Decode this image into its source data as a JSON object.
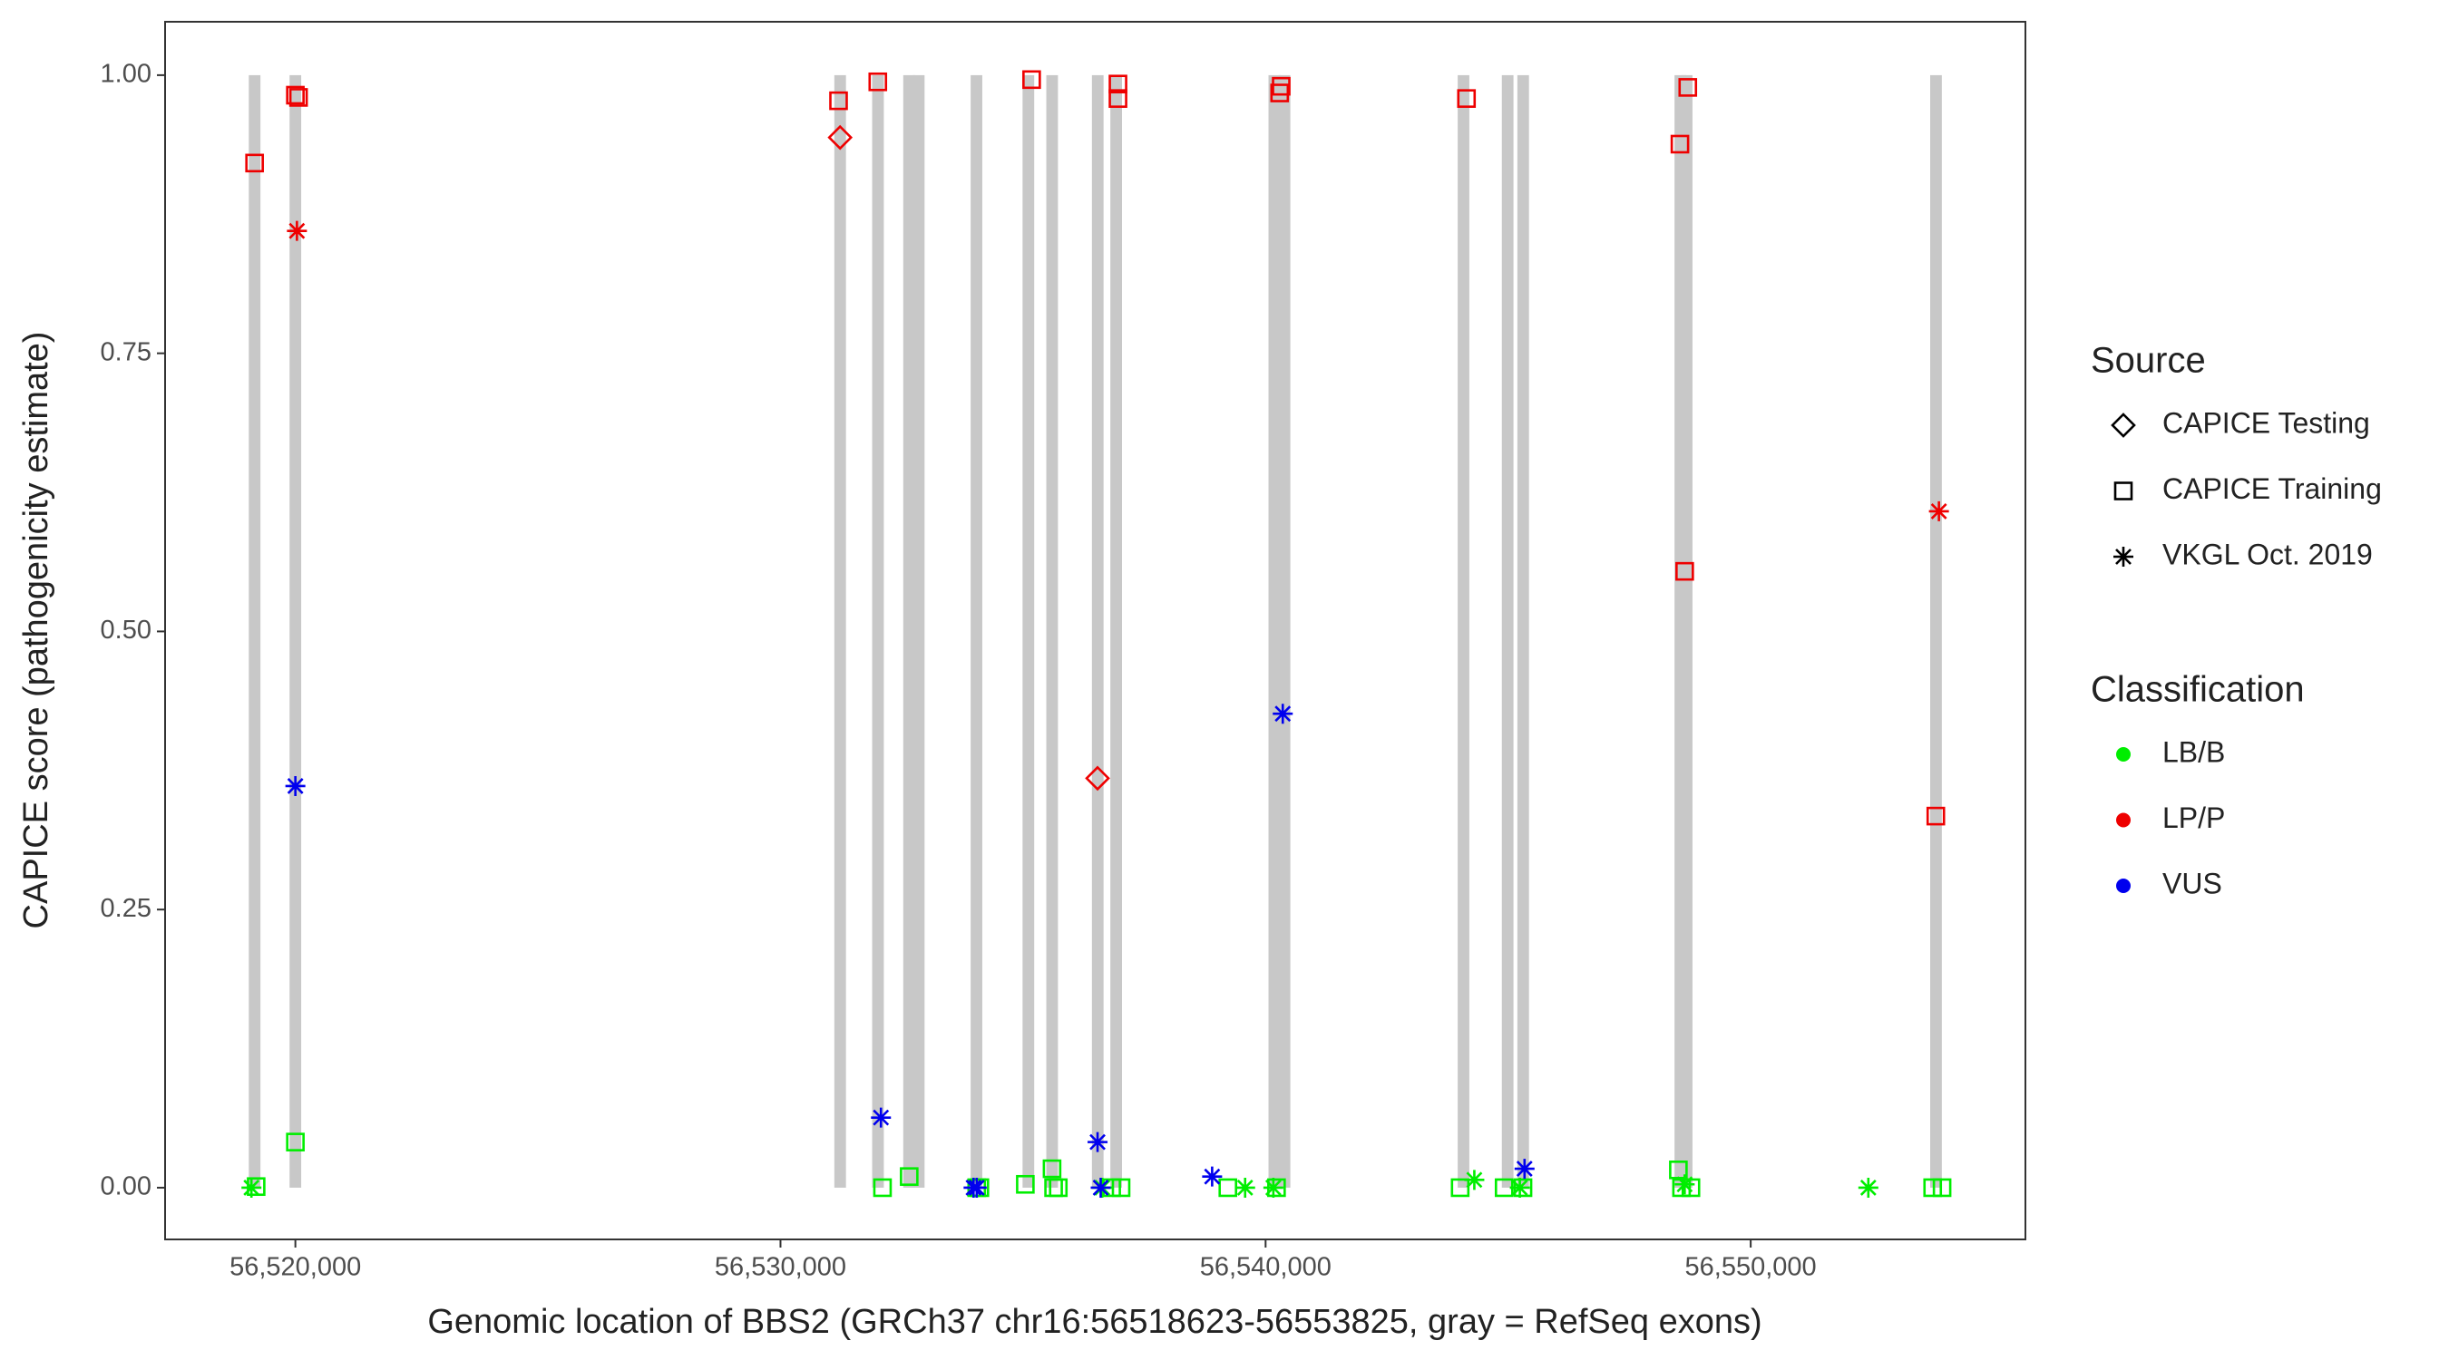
{
  "chart_data": {
    "type": "scatter",
    "xlabel": "Genomic location of BBS2 (GRCh37 chr16:56518623-56553825, gray = RefSeq exons)",
    "ylabel": "CAPICE score (pathogenicity estimate)",
    "xlim": [
      56517314,
      56555663
    ],
    "ylim": [
      -0.0465,
      1.048
    ],
    "xticks": [
      {
        "value": 56520000,
        "label": "56,520,000"
      },
      {
        "value": 56530000,
        "label": "56,530,000"
      },
      {
        "value": 56540000,
        "label": "56,540,000"
      },
      {
        "value": 56550000,
        "label": "56,550,000"
      }
    ],
    "yticks": [
      {
        "value": 0,
        "label": "0.00"
      },
      {
        "value": 0.25,
        "label": "0.25"
      },
      {
        "value": 0.5,
        "label": "0.50"
      },
      {
        "value": 0.75,
        "label": "0.75"
      },
      {
        "value": 1,
        "label": "1.00"
      }
    ],
    "grid": false,
    "exons": {
      "color": "#c8c8c8",
      "bottom": 0,
      "top": 1,
      "starts": [
        56519040,
        56519880,
        56531110,
        56531890,
        56532530,
        56532730,
        56533920,
        56534990,
        56535480,
        56536420,
        56536800,
        56540060,
        56540270,
        56543960,
        56544870,
        56545190,
        56548430,
        56548560,
        56553700
      ],
      "ends": [
        56519280,
        56520120,
        56531350,
        56532130,
        56532770,
        56532970,
        56534160,
        56535230,
        56535720,
        56536660,
        56537040,
        56540300,
        56540510,
        56544200,
        56545110,
        56545430,
        56548670,
        56548800,
        56553940
      ]
    },
    "shape_legend": {
      "title": "Source",
      "items": [
        {
          "name": "CAPICE Testing",
          "shape": "diamond"
        },
        {
          "name": "CAPICE Training",
          "shape": "square"
        },
        {
          "name": "VKGL Oct. 2019",
          "shape": "asterisk"
        }
      ]
    },
    "color_legend": {
      "title": "Classification"
    },
    "series": [
      {
        "name": "LB/B",
        "color": "#00ee00",
        "by_source": [
          {
            "x": [],
            "values": []
          },
          {
            "x": [
              56519191,
              56520000,
              56532103,
              56532653,
              56534045,
              56534110,
              56535047,
              56535598,
              56535630,
              56535727,
              56536827,
              56537021,
              56539222,
              56540225,
              56544011,
              56544917,
              56545306,
              56548509,
              56548574,
              56548768,
              56553751,
              56553945
            ],
            "values": [
              0.001,
              0.041,
              0,
              0.01,
              0,
              0,
              0.003,
              0.017,
              0,
              0,
              0,
              0,
              0,
              0,
              0,
              0,
              0,
              0.016,
              0,
              0,
              0,
              0
            ]
          },
          {
            "x": [
              56519094,
              56536633,
              56539578,
              56540160,
              56544303,
              56545241,
              56548639,
              56552425
            ],
            "values": [
              0,
              0,
              0,
              0,
              0.007,
              0,
              0.003,
              0
            ]
          }
        ]
      },
      {
        "name": "LP/P",
        "color": "#ee0000",
        "by_source": [
          {
            "x": [
              56531229,
              56536536
            ],
            "values": [
              0.944,
              0.368
            ]
          },
          {
            "x": [
              56519159,
              56520000,
              56520065,
              56531197,
              56532006,
              56535177,
              56536957,
              56536957,
              56540290,
              56540322,
              56544141,
              56548541,
              56548703,
              56548639,
              56553816
            ],
            "values": [
              0.921,
              0.982,
              0.98,
              0.977,
              0.994,
              0.996,
              0.992,
              0.979,
              0.984,
              0.99,
              0.979,
              0.938,
              0.989,
              0.554,
              0.334
            ]
          },
          {
            "x": [
              56520032,
              56553880
            ],
            "values": [
              0.86,
              0.608
            ]
          }
        ]
      },
      {
        "name": "VUS",
        "color": "#0000ee",
        "by_source": [
          {
            "x": [],
            "values": []
          },
          {
            "x": [],
            "values": []
          },
          {
            "x": [
              56520000,
              56532071,
              56533980,
              56534045,
              56536536,
              56536601,
              56538898,
              56540354,
              56545338
            ],
            "values": [
              0.361,
              0.063,
              0,
              0,
              0.041,
              0,
              0.01,
              0.426,
              0.017
            ]
          }
        ]
      }
    ]
  }
}
